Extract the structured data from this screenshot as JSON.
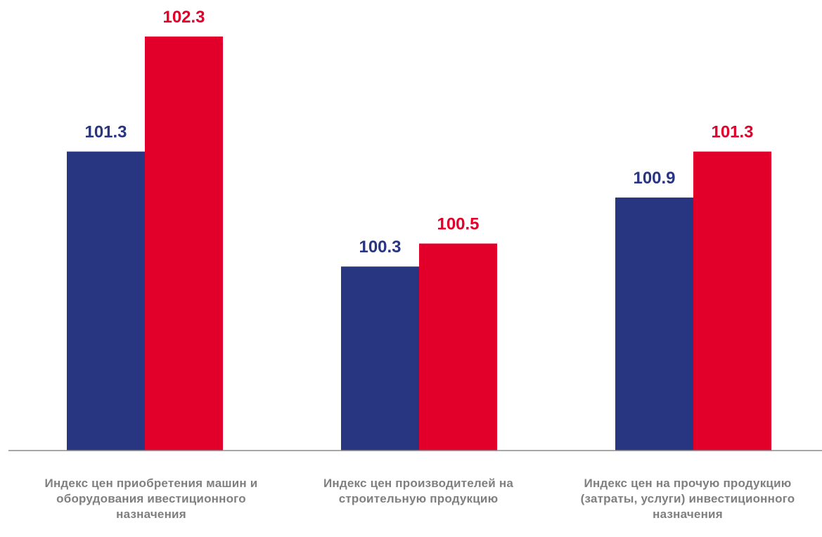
{
  "chart_data": {
    "type": "bar",
    "categories": [
      "Индекс цен  приобретения машин и\nоборудования ивестиционного\nназначения",
      "Индекс цен производителей на\nстроительную продукцию",
      "Индекс цен на прочую продукцию\n(затраты, услуги) инвестиционного\nназначения"
    ],
    "series": [
      {
        "values": [
          101.3,
          100.3,
          100.9
        ],
        "color": "#283580"
      },
      {
        "values": [
          102.3,
          100.5,
          101.3
        ],
        "color": "#e2002a"
      }
    ],
    "ylim": [
      98.7,
      102.3
    ],
    "grid": false,
    "legend": "none",
    "data_labels": true
  }
}
